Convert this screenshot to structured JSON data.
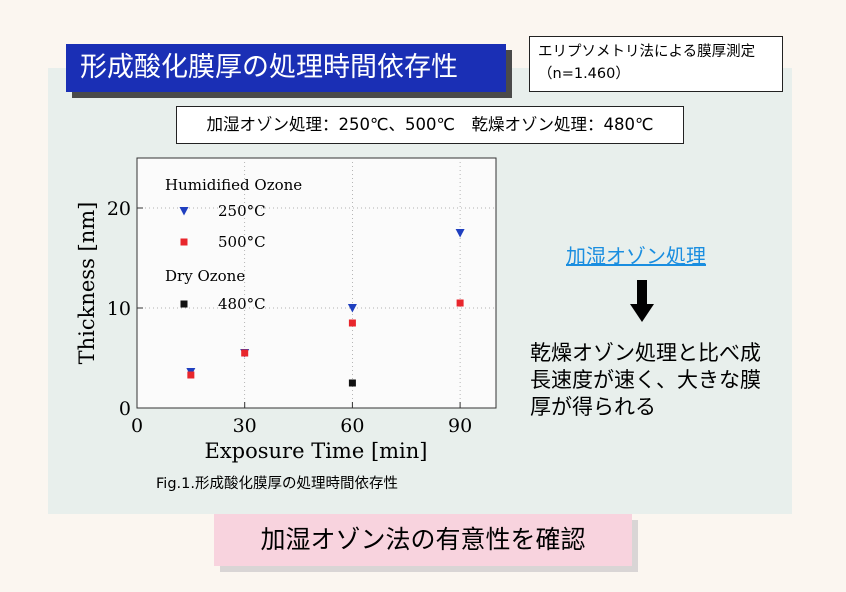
{
  "slide": {
    "title": "形成酸化膜厚の処理時間依存性",
    "method_note": "エリプソメトリ法による膜厚測定（n=1.460）",
    "conditions": "加湿オゾン処理：250℃、500℃　乾燥オゾン処理：480℃",
    "figure_caption": "Fig.1.形成酸化膜厚の処理時間依存性",
    "highlight_link": "加湿オゾン処理",
    "arrow_icon": "down-arrow-icon",
    "conclusion_text": "乾燥オゾン処理と比べ成長速度が速く、大きな膜厚が得られる",
    "bottom_banner": "加湿オゾン法の有意性を確認"
  },
  "colors": {
    "title_bg": "#1a2fb5",
    "panel_bg": "#e8efec",
    "link": "#1a8ee0",
    "banner_bg": "#f8d3de",
    "series_250": "#1f3fbf",
    "series_500": "#e8262c",
    "series_480": "#111111"
  },
  "chart_data": {
    "type": "scatter",
    "xlabel": "Exposure Time [min]",
    "ylabel": "Thickness [nm]",
    "xlim": [
      0,
      100
    ],
    "ylim": [
      0,
      25
    ],
    "x_ticks": [
      "0",
      "30",
      "60",
      "90"
    ],
    "y_ticks": [
      "0",
      "10",
      "20"
    ],
    "grid": true,
    "legend_position": "top-left",
    "legend_groups": [
      "Humidified Ozone",
      "Dry Ozone"
    ],
    "series": [
      {
        "name": "250°C",
        "group": "Humidified Ozone",
        "marker": "triangle-down",
        "color": "#1f3fbf",
        "x": [
          15,
          30,
          60,
          90
        ],
        "y": [
          3.6,
          5.5,
          10.0,
          17.5
        ]
      },
      {
        "name": "500°C",
        "group": "Humidified Ozone",
        "marker": "square",
        "color": "#e8262c",
        "x": [
          15,
          30,
          60,
          90
        ],
        "y": [
          3.3,
          5.5,
          8.5,
          10.5
        ]
      },
      {
        "name": "480°C",
        "group": "Dry Ozone",
        "marker": "square",
        "color": "#111111",
        "x": [
          60
        ],
        "y": [
          2.5
        ]
      }
    ]
  }
}
